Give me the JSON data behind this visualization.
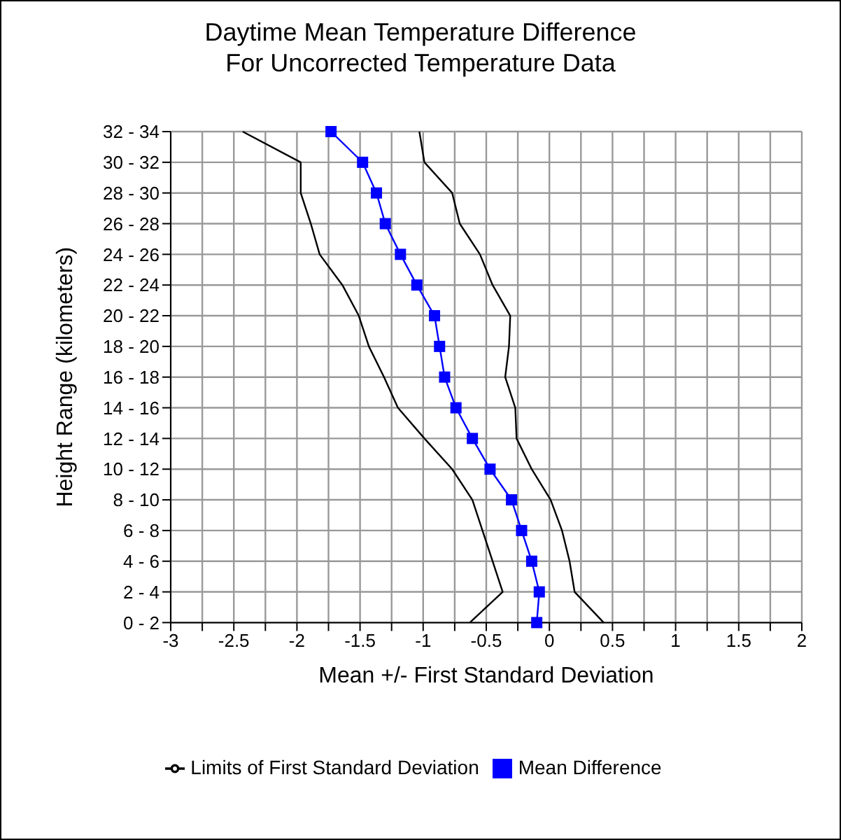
{
  "chart_data": {
    "type": "line",
    "orientation": "horizontal",
    "title": "Daytime Mean Temperature Difference\nFor Uncorrected Temperature Data",
    "xlabel": "Mean +/- First Standard Deviation",
    "ylabel": "Height Range (kilometers)",
    "categories": [
      "32 - 34",
      "30 - 32",
      "28 - 30",
      "26 - 28",
      "24 - 26",
      "22 - 24",
      "20 - 22",
      "18 - 20",
      "16 - 18",
      "14 - 16",
      "12 - 14",
      "10 - 12",
      "8 - 10",
      "6 - 8",
      "4 - 6",
      "2 - 4",
      "0 - 2"
    ],
    "series": [
      {
        "name": "Limits of First Standard Deviation",
        "color": "#000000",
        "marker": "none",
        "values": [
          -2.43,
          -1.97,
          -1.97,
          -1.89,
          -1.82,
          -1.64,
          -1.51,
          -1.43,
          -1.31,
          -1.2,
          -0.99,
          -0.77,
          -0.61,
          -0.53,
          -0.45,
          -0.37,
          -0.63
        ]
      },
      {
        "color": "#000000",
        "marker": "none",
        "values": [
          -1.03,
          -0.99,
          -0.77,
          -0.71,
          -0.55,
          -0.45,
          -0.31,
          -0.32,
          -0.35,
          -0.27,
          -0.26,
          -0.14,
          0.01,
          0.1,
          0.16,
          0.2,
          0.43
        ]
      },
      {
        "name": "Mean Difference",
        "color": "#0000ff",
        "marker": "square",
        "values": [
          -1.73,
          -1.48,
          -1.37,
          -1.3,
          -1.18,
          -1.05,
          -0.91,
          -0.87,
          -0.83,
          -0.74,
          -0.61,
          -0.47,
          -0.3,
          -0.22,
          -0.14,
          -0.08,
          -0.1
        ]
      }
    ],
    "xlim": [
      -3,
      2
    ],
    "xticks": [
      -3,
      {
        "value": -2.75,
        "label": null
      },
      -2.5,
      {
        "value": -2.25,
        "label": null
      },
      -2,
      {
        "value": -1.75,
        "label": null
      },
      -1.5,
      {
        "value": -1.25,
        "label": null
      },
      -1,
      {
        "value": -0.75,
        "label": null
      },
      -0.5,
      {
        "value": -0.25,
        "label": null
      },
      0,
      {
        "value": 0.25,
        "label": null
      },
      0.5,
      {
        "value": 0.75,
        "label": null
      },
      1,
      {
        "value": 1.25,
        "label": null
      },
      1.5,
      {
        "value": 1.75,
        "label": null
      },
      2
    ],
    "grid": true,
    "legend": "bottom"
  }
}
